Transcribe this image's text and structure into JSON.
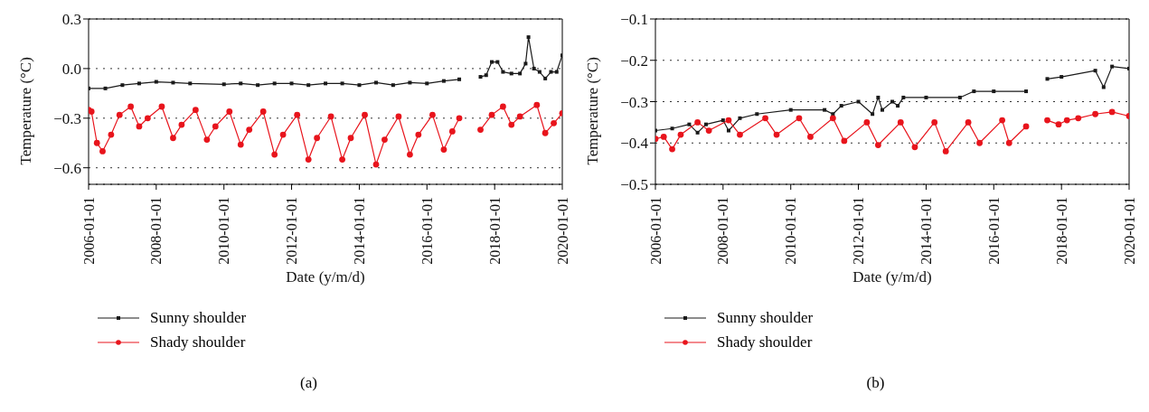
{
  "chart_data": [
    {
      "type": "line",
      "xlabel": "Date (y/m/d)",
      "ylabel": "Temperature (°C)",
      "annotations": [
        "(a)"
      ],
      "xlim": [
        "2006-01-01",
        "2020-01-01"
      ],
      "xticks": [
        "2006-01-01",
        "2008-01-01",
        "2010-01-01",
        "2012-01-01",
        "2014-01-01",
        "2016-01-01",
        "2018-01-01",
        "2020-01-01"
      ],
      "ylim": [
        -0.7,
        0.3
      ],
      "yticks": [
        {
          "value": 0.3,
          "label": "0.3"
        },
        {
          "value": 0,
          "label": "0.0"
        },
        {
          "value": -0.3,
          "label": "−0.3"
        },
        {
          "value": -0.6,
          "label": "−0.6"
        }
      ],
      "grid": "y",
      "legend": "bottom left",
      "line_style": "solid",
      "series": [
        {
          "name": "Sunny shoulder",
          "color": "#1a1a1a",
          "marker": "square",
          "x": [
            "2006-01-01",
            "2006-07-01",
            "2007-01-01",
            "2007-07-01",
            "2008-01-01",
            "2008-07-01",
            "2009-01-01",
            "2010-01-01",
            "2010-07-01",
            "2011-01-01",
            "2011-07-01",
            "2012-01-01",
            "2012-07-01",
            "2013-01-01",
            "2013-07-01",
            "2014-01-01",
            "2014-07-01",
            "2015-01-01",
            "2015-07-01",
            "2016-01-01",
            "2016-07-01",
            "2016-12-15",
            "2017-04-01",
            "2017-08-01",
            "2017-10-01",
            "2017-12-01",
            "2018-02-01",
            "2018-04-01",
            "2018-07-01",
            "2018-10-01",
            "2018-12-01",
            "2019-01-01",
            "2019-03-01",
            "2019-05-01",
            "2019-07-01",
            "2019-09-01",
            "2019-11-01",
            "2020-01-01"
          ],
          "values": [
            -0.12,
            -0.12,
            -0.1,
            -0.09,
            -0.08,
            -0.085,
            -0.09,
            -0.095,
            -0.09,
            -0.1,
            -0.09,
            -0.09,
            -0.1,
            -0.09,
            -0.09,
            -0.1,
            -0.085,
            -0.1,
            -0.085,
            -0.09,
            -0.075,
            -0.065,
            null,
            -0.05,
            -0.04,
            0.04,
            0.04,
            -0.02,
            -0.03,
            -0.03,
            0.03,
            0.19,
            0,
            -0.02,
            -0.06,
            -0.02,
            -0.02,
            0.08
          ]
        },
        {
          "name": "Shady shoulder",
          "color": "#e8141c",
          "marker": "circle",
          "x": [
            "2006-01-01",
            "2006-02-01",
            "2006-04-01",
            "2006-06-01",
            "2006-09-01",
            "2006-12-01",
            "2007-04-01",
            "2007-07-01",
            "2007-10-01",
            "2008-03-01",
            "2008-07-01",
            "2008-10-01",
            "2009-03-01",
            "2009-07-01",
            "2009-10-01",
            "2010-03-01",
            "2010-07-01",
            "2010-10-01",
            "2011-03-01",
            "2011-07-01",
            "2011-10-01",
            "2012-03-01",
            "2012-07-01",
            "2012-10-01",
            "2013-03-01",
            "2013-07-01",
            "2013-10-01",
            "2014-03-01",
            "2014-07-01",
            "2014-10-01",
            "2015-03-01",
            "2015-07-01",
            "2015-10-01",
            "2016-03-01",
            "2016-07-01",
            "2016-10-01",
            "2016-12-15",
            "2017-04-01",
            "2017-08-01",
            "2017-12-01",
            "2018-04-01",
            "2018-07-01",
            "2018-10-01",
            "2019-04-01",
            "2019-07-01",
            "2019-10-01",
            "2020-01-01"
          ],
          "values": [
            -0.25,
            -0.26,
            -0.45,
            -0.5,
            -0.4,
            -0.28,
            -0.23,
            -0.35,
            -0.3,
            -0.23,
            -0.42,
            -0.34,
            -0.25,
            -0.43,
            -0.35,
            -0.26,
            -0.46,
            -0.37,
            -0.26,
            -0.52,
            -0.4,
            -0.28,
            -0.55,
            -0.42,
            -0.29,
            -0.55,
            -0.42,
            -0.28,
            -0.58,
            -0.43,
            -0.29,
            -0.52,
            -0.4,
            -0.28,
            -0.49,
            -0.38,
            -0.3,
            null,
            -0.37,
            -0.28,
            -0.23,
            -0.34,
            -0.29,
            -0.22,
            -0.39,
            -0.33,
            -0.27
          ]
        }
      ]
    },
    {
      "type": "line",
      "xlabel": "Date (y/m/d)",
      "ylabel": "Temperature (°C)",
      "annotations": [
        "(b)"
      ],
      "xlim": [
        "2006-01-01",
        "2020-01-01"
      ],
      "xticks": [
        "2006-01-01",
        "2008-01-01",
        "2010-01-01",
        "2012-01-01",
        "2014-01-01",
        "2016-01-01",
        "2018-01-01",
        "2020-01-01"
      ],
      "ylim": [
        -0.5,
        -0.1
      ],
      "yticks": [
        {
          "value": -0.1,
          "label": "−0.1"
        },
        {
          "value": -0.2,
          "label": "−0.2"
        },
        {
          "value": -0.3,
          "label": "−0.3"
        },
        {
          "value": -0.4,
          "label": "−0.4"
        },
        {
          "value": -0.5,
          "label": "−0.5"
        }
      ],
      "grid": "y",
      "legend": "bottom left",
      "line_style": "solid",
      "series": [
        {
          "name": "Sunny shoulder",
          "color": "#1a1a1a",
          "marker": "square",
          "x": [
            "2006-01-01",
            "2006-07-01",
            "2007-01-01",
            "2007-04-01",
            "2007-07-01",
            "2008-01-01",
            "2008-03-01",
            "2008-07-01",
            "2009-01-01",
            "2010-01-01",
            "2011-01-01",
            "2011-04-01",
            "2011-07-01",
            "2012-01-01",
            "2012-06-01",
            "2012-08-01",
            "2012-09-15",
            "2013-01-01",
            "2013-03-01",
            "2013-05-01",
            "2014-01-01",
            "2015-01-01",
            "2015-06-01",
            "2016-01-01",
            "2016-12-15",
            "2017-04-01",
            "2017-08-01",
            "2018-01-01",
            "2019-01-01",
            "2019-04-01",
            "2019-07-01",
            "2020-01-01"
          ],
          "values": [
            -0.37,
            -0.365,
            -0.355,
            -0.375,
            -0.355,
            -0.345,
            -0.37,
            -0.34,
            -0.33,
            -0.32,
            -0.32,
            -0.33,
            -0.31,
            -0.3,
            -0.33,
            -0.29,
            -0.32,
            -0.3,
            -0.31,
            -0.29,
            -0.29,
            -0.29,
            -0.275,
            -0.275,
            -0.275,
            null,
            -0.245,
            -0.24,
            -0.225,
            -0.265,
            -0.215,
            -0.22
          ]
        },
        {
          "name": "Shady shoulder",
          "color": "#e8141c",
          "marker": "circle",
          "x": [
            "2006-01-01",
            "2006-04-01",
            "2006-07-01",
            "2006-10-01",
            "2007-04-01",
            "2007-08-01",
            "2008-03-01",
            "2008-07-01",
            "2009-04-01",
            "2009-08-01",
            "2010-04-01",
            "2010-08-01",
            "2011-04-01",
            "2011-08-01",
            "2012-04-01",
            "2012-08-01",
            "2013-04-01",
            "2013-09-01",
            "2014-04-01",
            "2014-08-01",
            "2015-04-01",
            "2015-08-01",
            "2016-04-01",
            "2016-06-15",
            "2016-12-15",
            "2017-04-01",
            "2017-08-01",
            "2017-12-01",
            "2018-03-01",
            "2018-07-01",
            "2019-01-01",
            "2019-07-01",
            "2020-01-01"
          ],
          "values": [
            -0.39,
            -0.385,
            -0.415,
            -0.38,
            -0.35,
            -0.37,
            -0.345,
            -0.38,
            -0.34,
            -0.38,
            -0.34,
            -0.385,
            -0.34,
            -0.395,
            -0.35,
            -0.405,
            -0.35,
            -0.41,
            -0.35,
            -0.42,
            -0.35,
            -0.4,
            -0.345,
            -0.4,
            -0.36,
            null,
            -0.345,
            -0.355,
            -0.345,
            -0.34,
            -0.33,
            -0.325,
            -0.335
          ]
        }
      ]
    }
  ]
}
